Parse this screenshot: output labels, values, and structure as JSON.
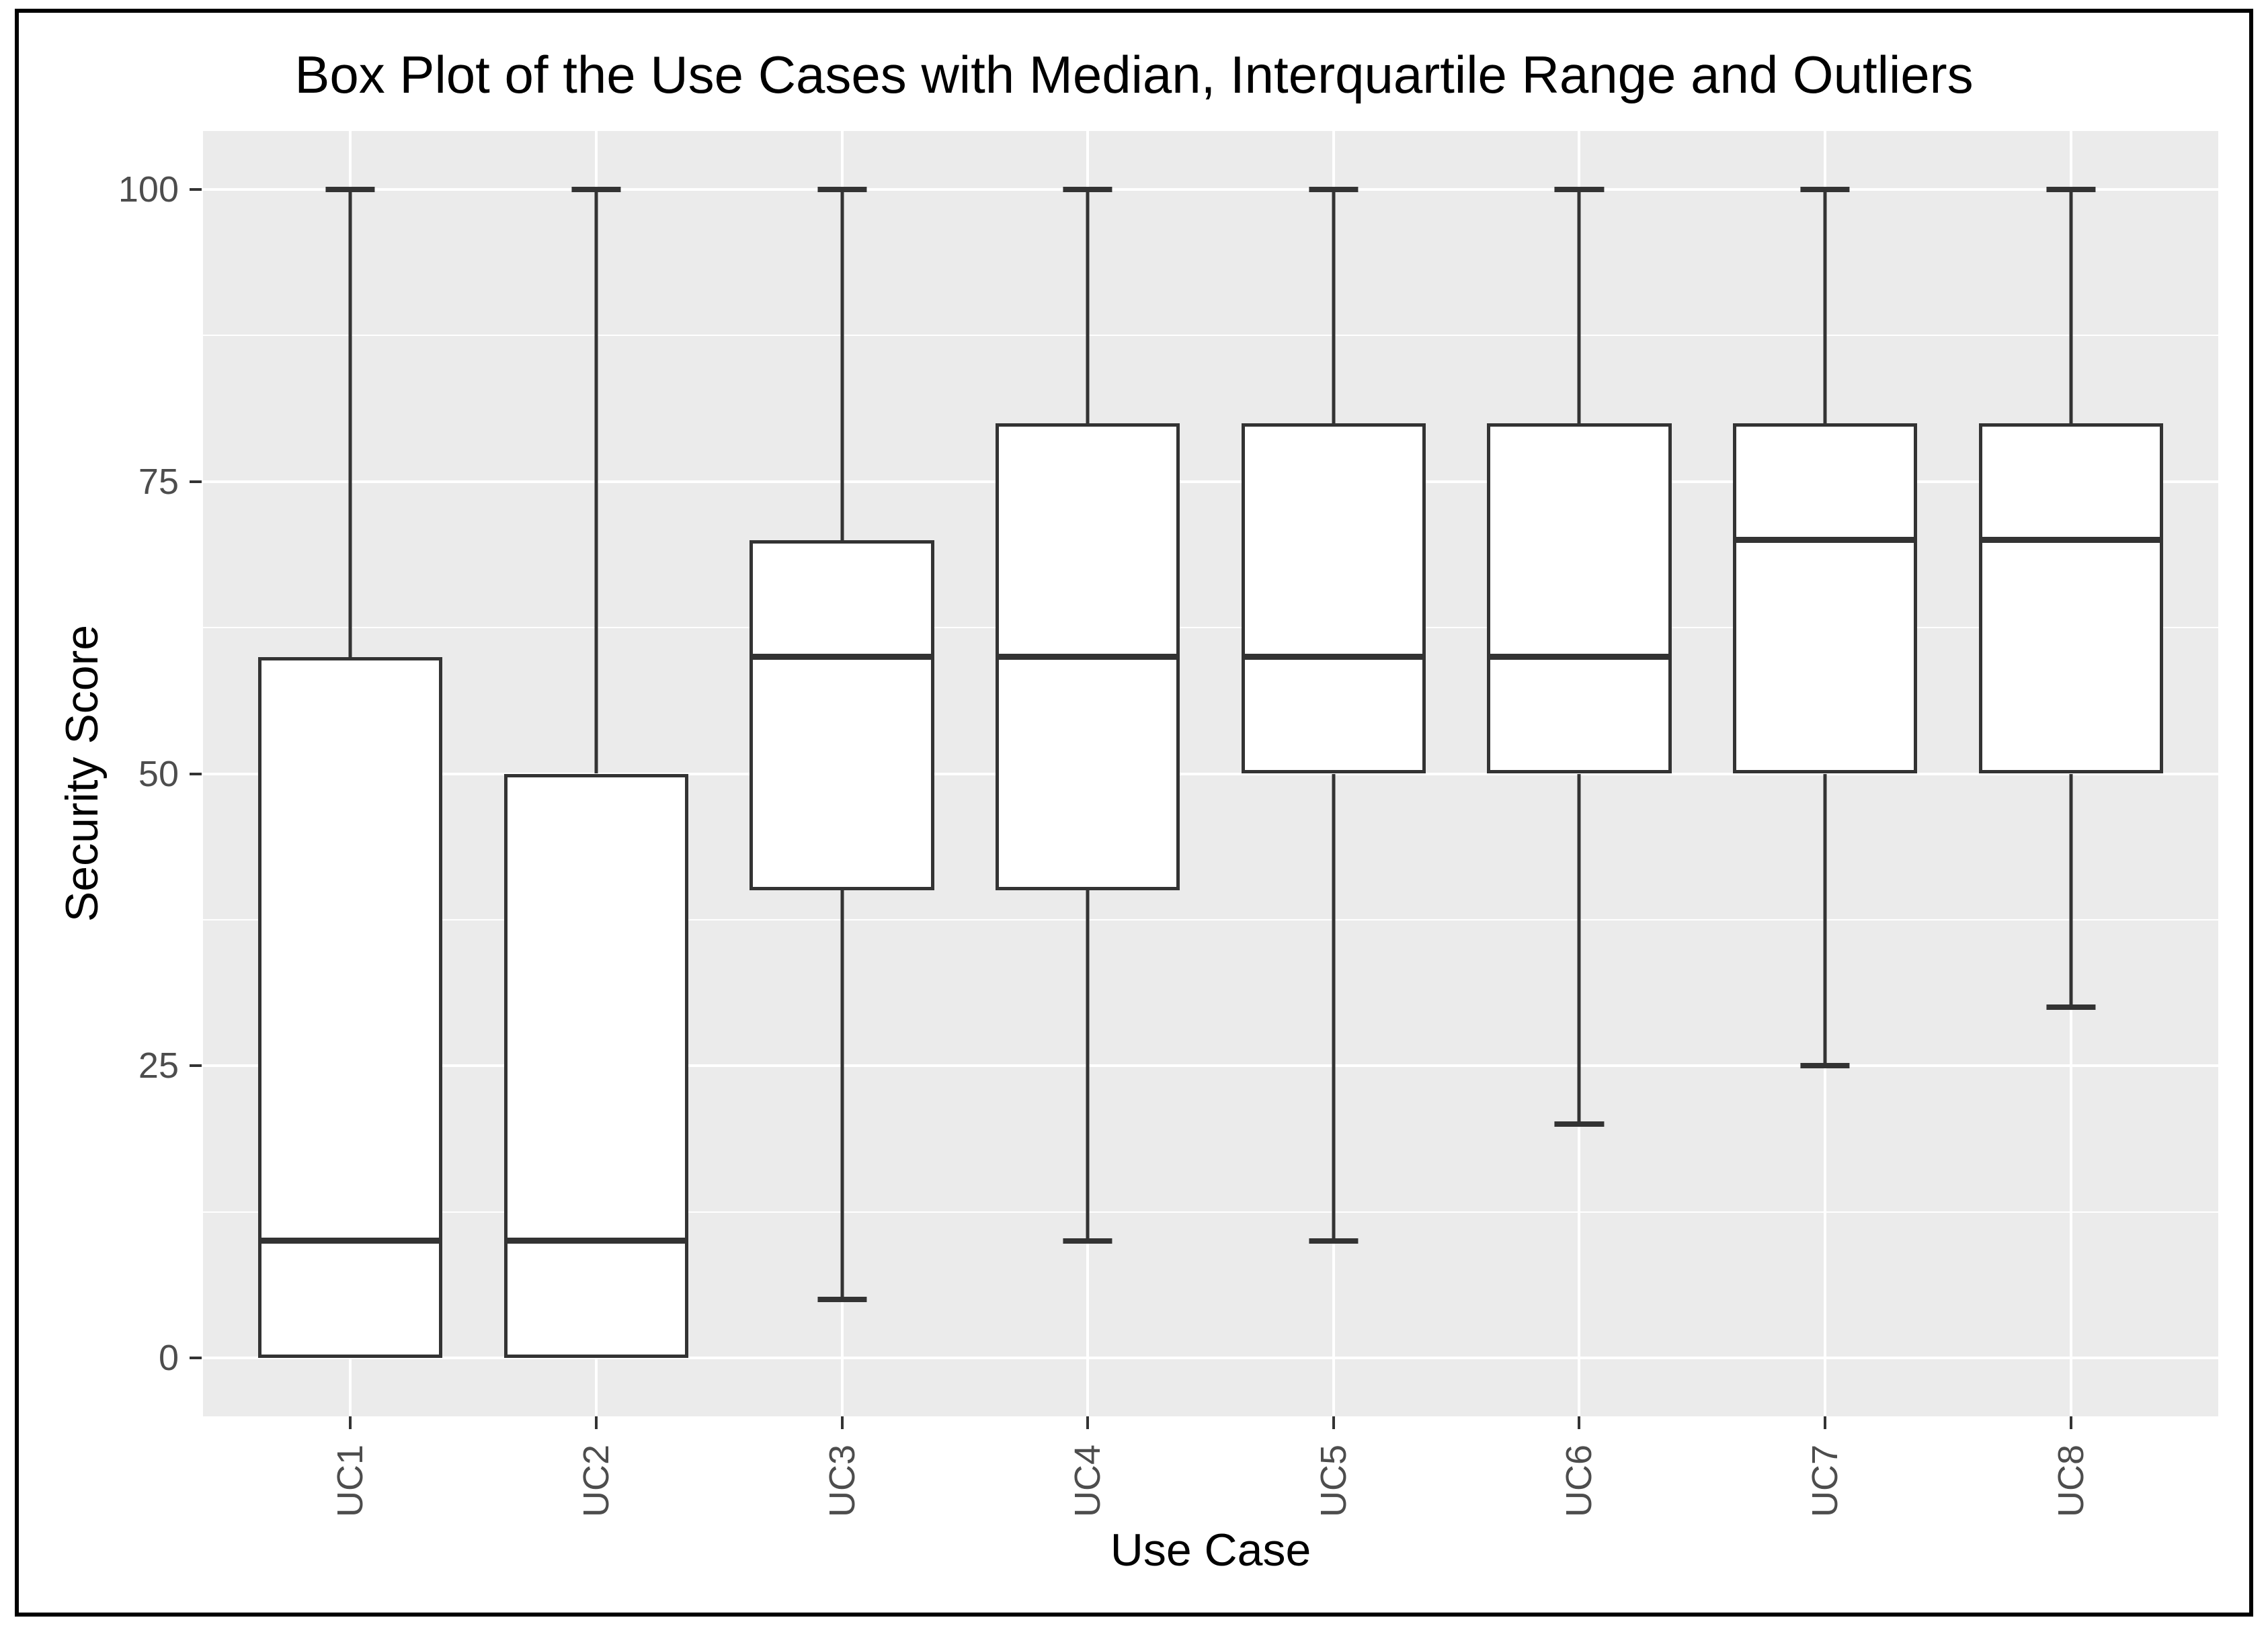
{
  "title": "Box Plot of the Use Cases with Median, Interquartile Range and Outliers",
  "axes": {
    "x_title": "Use Case",
    "y_title": "Security Score",
    "y_tick_labels": [
      "0",
      "25",
      "50",
      "75",
      "100"
    ],
    "x_tick_labels": [
      "UC1",
      "UC2",
      "UC3",
      "UC4",
      "UC5",
      "UC6",
      "UC7",
      "UC8"
    ]
  },
  "chart_data": {
    "type": "boxplot",
    "title": "Box Plot of the Use Cases with Median, Interquartile Range and Outliers",
    "xlabel": "Use Case",
    "ylabel": "Security Score",
    "ylim": [
      0,
      100
    ],
    "y_major_ticks": [
      0,
      25,
      50,
      75,
      100
    ],
    "y_minor_gridlines": [
      12.5,
      37.5,
      62.5,
      87.5
    ],
    "grid": "gray panel with white major and minor horizontal gridlines and a white vertical gridline at each category center",
    "legend_position": "none",
    "categories": [
      "UC1",
      "UC2",
      "UC3",
      "UC4",
      "UC5",
      "UC6",
      "UC7",
      "UC8"
    ],
    "series": [
      {
        "name": "Security Score",
        "boxes": [
          {
            "category": "UC1",
            "min": 0,
            "q1": 0,
            "median": 10,
            "q3": 60,
            "max": 100,
            "outliers": []
          },
          {
            "category": "UC2",
            "min": 0,
            "q1": 0,
            "median": 10,
            "q3": 50,
            "max": 100,
            "outliers": []
          },
          {
            "category": "UC3",
            "min": 5,
            "q1": 40,
            "median": 60,
            "q3": 70,
            "max": 100,
            "outliers": []
          },
          {
            "category": "UC4",
            "min": 10,
            "q1": 40,
            "median": 60,
            "q3": 80,
            "max": 100,
            "outliers": []
          },
          {
            "category": "UC5",
            "min": 10,
            "q1": 50,
            "median": 60,
            "q3": 80,
            "max": 100,
            "outliers": []
          },
          {
            "category": "UC6",
            "min": 20,
            "q1": 50,
            "median": 60,
            "q3": 80,
            "max": 100,
            "outliers": []
          },
          {
            "category": "UC7",
            "min": 25,
            "q1": 50,
            "median": 70,
            "q3": 80,
            "max": 100,
            "outliers": []
          },
          {
            "category": "UC8",
            "min": 30,
            "q1": 50,
            "median": 70,
            "q3": 80,
            "max": 100,
            "outliers": []
          }
        ]
      }
    ]
  },
  "style": {
    "page_bg": "#FFFFFF",
    "frame_color": "#000000",
    "panel_bg": "#EBEBEB",
    "gridline_color": "#FFFFFF",
    "box_stroke": "#333333",
    "box_fill": "#FFFFFF",
    "tick_text_color": "#4D4D4D",
    "text_color": "#000000"
  }
}
